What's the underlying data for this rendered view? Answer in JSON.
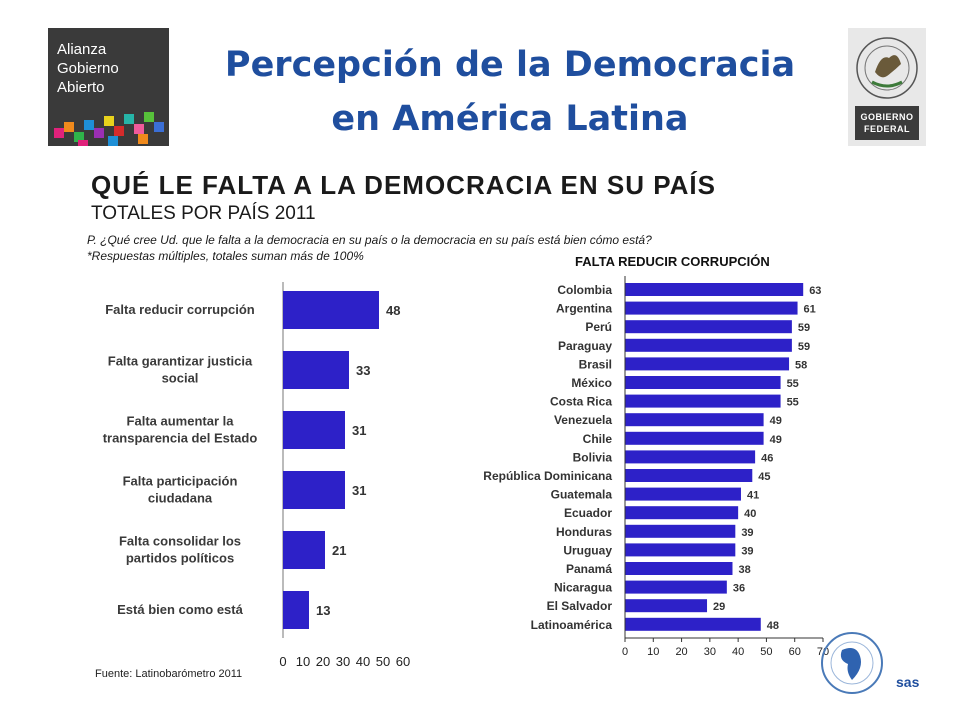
{
  "header": {
    "title_line1": "Percepción de la Democracia",
    "title_line2": "en América Latina",
    "logo_left_lines": [
      "Alianza",
      "Gobierno",
      "Abierto"
    ],
    "logo_right_plate_lines": [
      "GOBIERNO",
      "FEDERAL"
    ]
  },
  "figure": {
    "heading": "QUÉ LE FALTA A LA DEMOCRACIA EN SU PAÍS",
    "subheading": "TOTALES POR PAÍS 2011",
    "question": "P. ¿Qué cree Ud. que le falta a la democracia en su país o la democracia en su país está bien cómo está?",
    "note": "*Respuestas múltiples, totales suman más de 100%",
    "source": "Fuente: Latinobarómetro 2011",
    "corner_text": "sas"
  },
  "colors": {
    "bar": "#2d21c8",
    "title": "#1f4e9e"
  },
  "chart_data": [
    {
      "type": "bar",
      "orientation": "horizontal",
      "title": "",
      "categories": [
        [
          "Falta reducir corrupción"
        ],
        [
          "Falta garantizar justicia",
          "social"
        ],
        [
          "Falta aumentar la",
          "transparencia del Estado"
        ],
        [
          "Falta participación",
          "ciudadana"
        ],
        [
          "Falta consolidar los",
          "partidos políticos"
        ],
        [
          "Está bien como está"
        ]
      ],
      "values": [
        48,
        33,
        31,
        31,
        21,
        13
      ],
      "xlim": [
        0,
        60
      ],
      "xticks": [
        0,
        10,
        20,
        30,
        40,
        50,
        60
      ]
    },
    {
      "type": "bar",
      "orientation": "horizontal",
      "title": "FALTA REDUCIR CORRUPCIÓN",
      "categories": [
        "Colombia",
        "Argentina",
        "Perú",
        "Paraguay",
        "Brasil",
        "México",
        "Costa Rica",
        "Venezuela",
        "Chile",
        "Bolivia",
        "República Dominicana",
        "Guatemala",
        "Ecuador",
        "Honduras",
        "Uruguay",
        "Panamá",
        "Nicaragua",
        "El Salvador",
        "Latinoamérica"
      ],
      "values": [
        63,
        61,
        59,
        59,
        58,
        55,
        55,
        49,
        49,
        46,
        45,
        41,
        40,
        39,
        39,
        38,
        36,
        29,
        48
      ],
      "xlim": [
        0,
        70
      ],
      "xticks": [
        0,
        10,
        20,
        30,
        40,
        50,
        60,
        70
      ]
    }
  ]
}
